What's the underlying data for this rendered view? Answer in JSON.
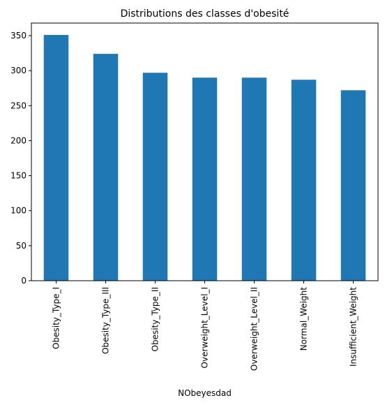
{
  "chart_data": {
    "type": "bar",
    "title": "Distributions des classes d'obesité",
    "xlabel": "NObeyesdad",
    "ylabel": "",
    "categories": [
      "Obesity_Type_I",
      "Obesity_Type_III",
      "Obesity_Type_II",
      "Overweight_Level_I",
      "Overweight_Level_II",
      "Normal_Weight",
      "Insufficient_Weight"
    ],
    "values": [
      351,
      324,
      297,
      290,
      290,
      287,
      272
    ],
    "ylim": [
      0,
      368
    ],
    "yticks": [
      0,
      50,
      100,
      150,
      200,
      250,
      300,
      350
    ],
    "grid": false,
    "bar_color": "#1f77b4"
  }
}
